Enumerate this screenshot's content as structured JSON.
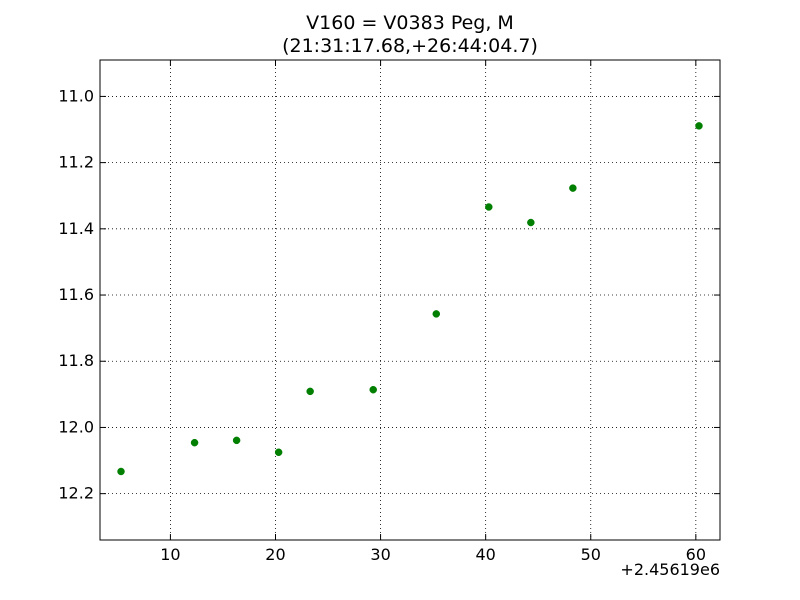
{
  "chart_data": {
    "type": "scatter",
    "title": "V160 = V0383 Peg, M",
    "subtitle": "(21:31:17.68,+26:44:04.7)",
    "xlabel": "",
    "ylabel": "",
    "x_offset_label": "+2.45619e6",
    "xlim": [
      3.3,
      62.3
    ],
    "ylim": [
      12.34,
      10.89
    ],
    "y_inverted": true,
    "grid": true,
    "x_ticks": [
      10,
      20,
      30,
      40,
      50,
      60
    ],
    "y_ticks": [
      11.0,
      11.2,
      11.4,
      11.6,
      11.8,
      12.0,
      12.2
    ],
    "x_tick_labels": [
      "10",
      "20",
      "30",
      "40",
      "50",
      "60"
    ],
    "y_tick_labels": [
      "11.0",
      "11.2",
      "11.4",
      "11.6",
      "11.8",
      "12.0",
      "12.2"
    ],
    "marker_color": "#007f00",
    "points": [
      {
        "x": 5.3,
        "y": 12.133
      },
      {
        "x": 12.3,
        "y": 12.046
      },
      {
        "x": 16.3,
        "y": 12.039
      },
      {
        "x": 20.3,
        "y": 12.075
      },
      {
        "x": 23.3,
        "y": 11.891
      },
      {
        "x": 29.3,
        "y": 11.886
      },
      {
        "x": 35.3,
        "y": 11.657
      },
      {
        "x": 40.3,
        "y": 11.334
      },
      {
        "x": 44.3,
        "y": 11.381
      },
      {
        "x": 48.3,
        "y": 11.277
      },
      {
        "x": 60.3,
        "y": 11.089
      }
    ]
  }
}
